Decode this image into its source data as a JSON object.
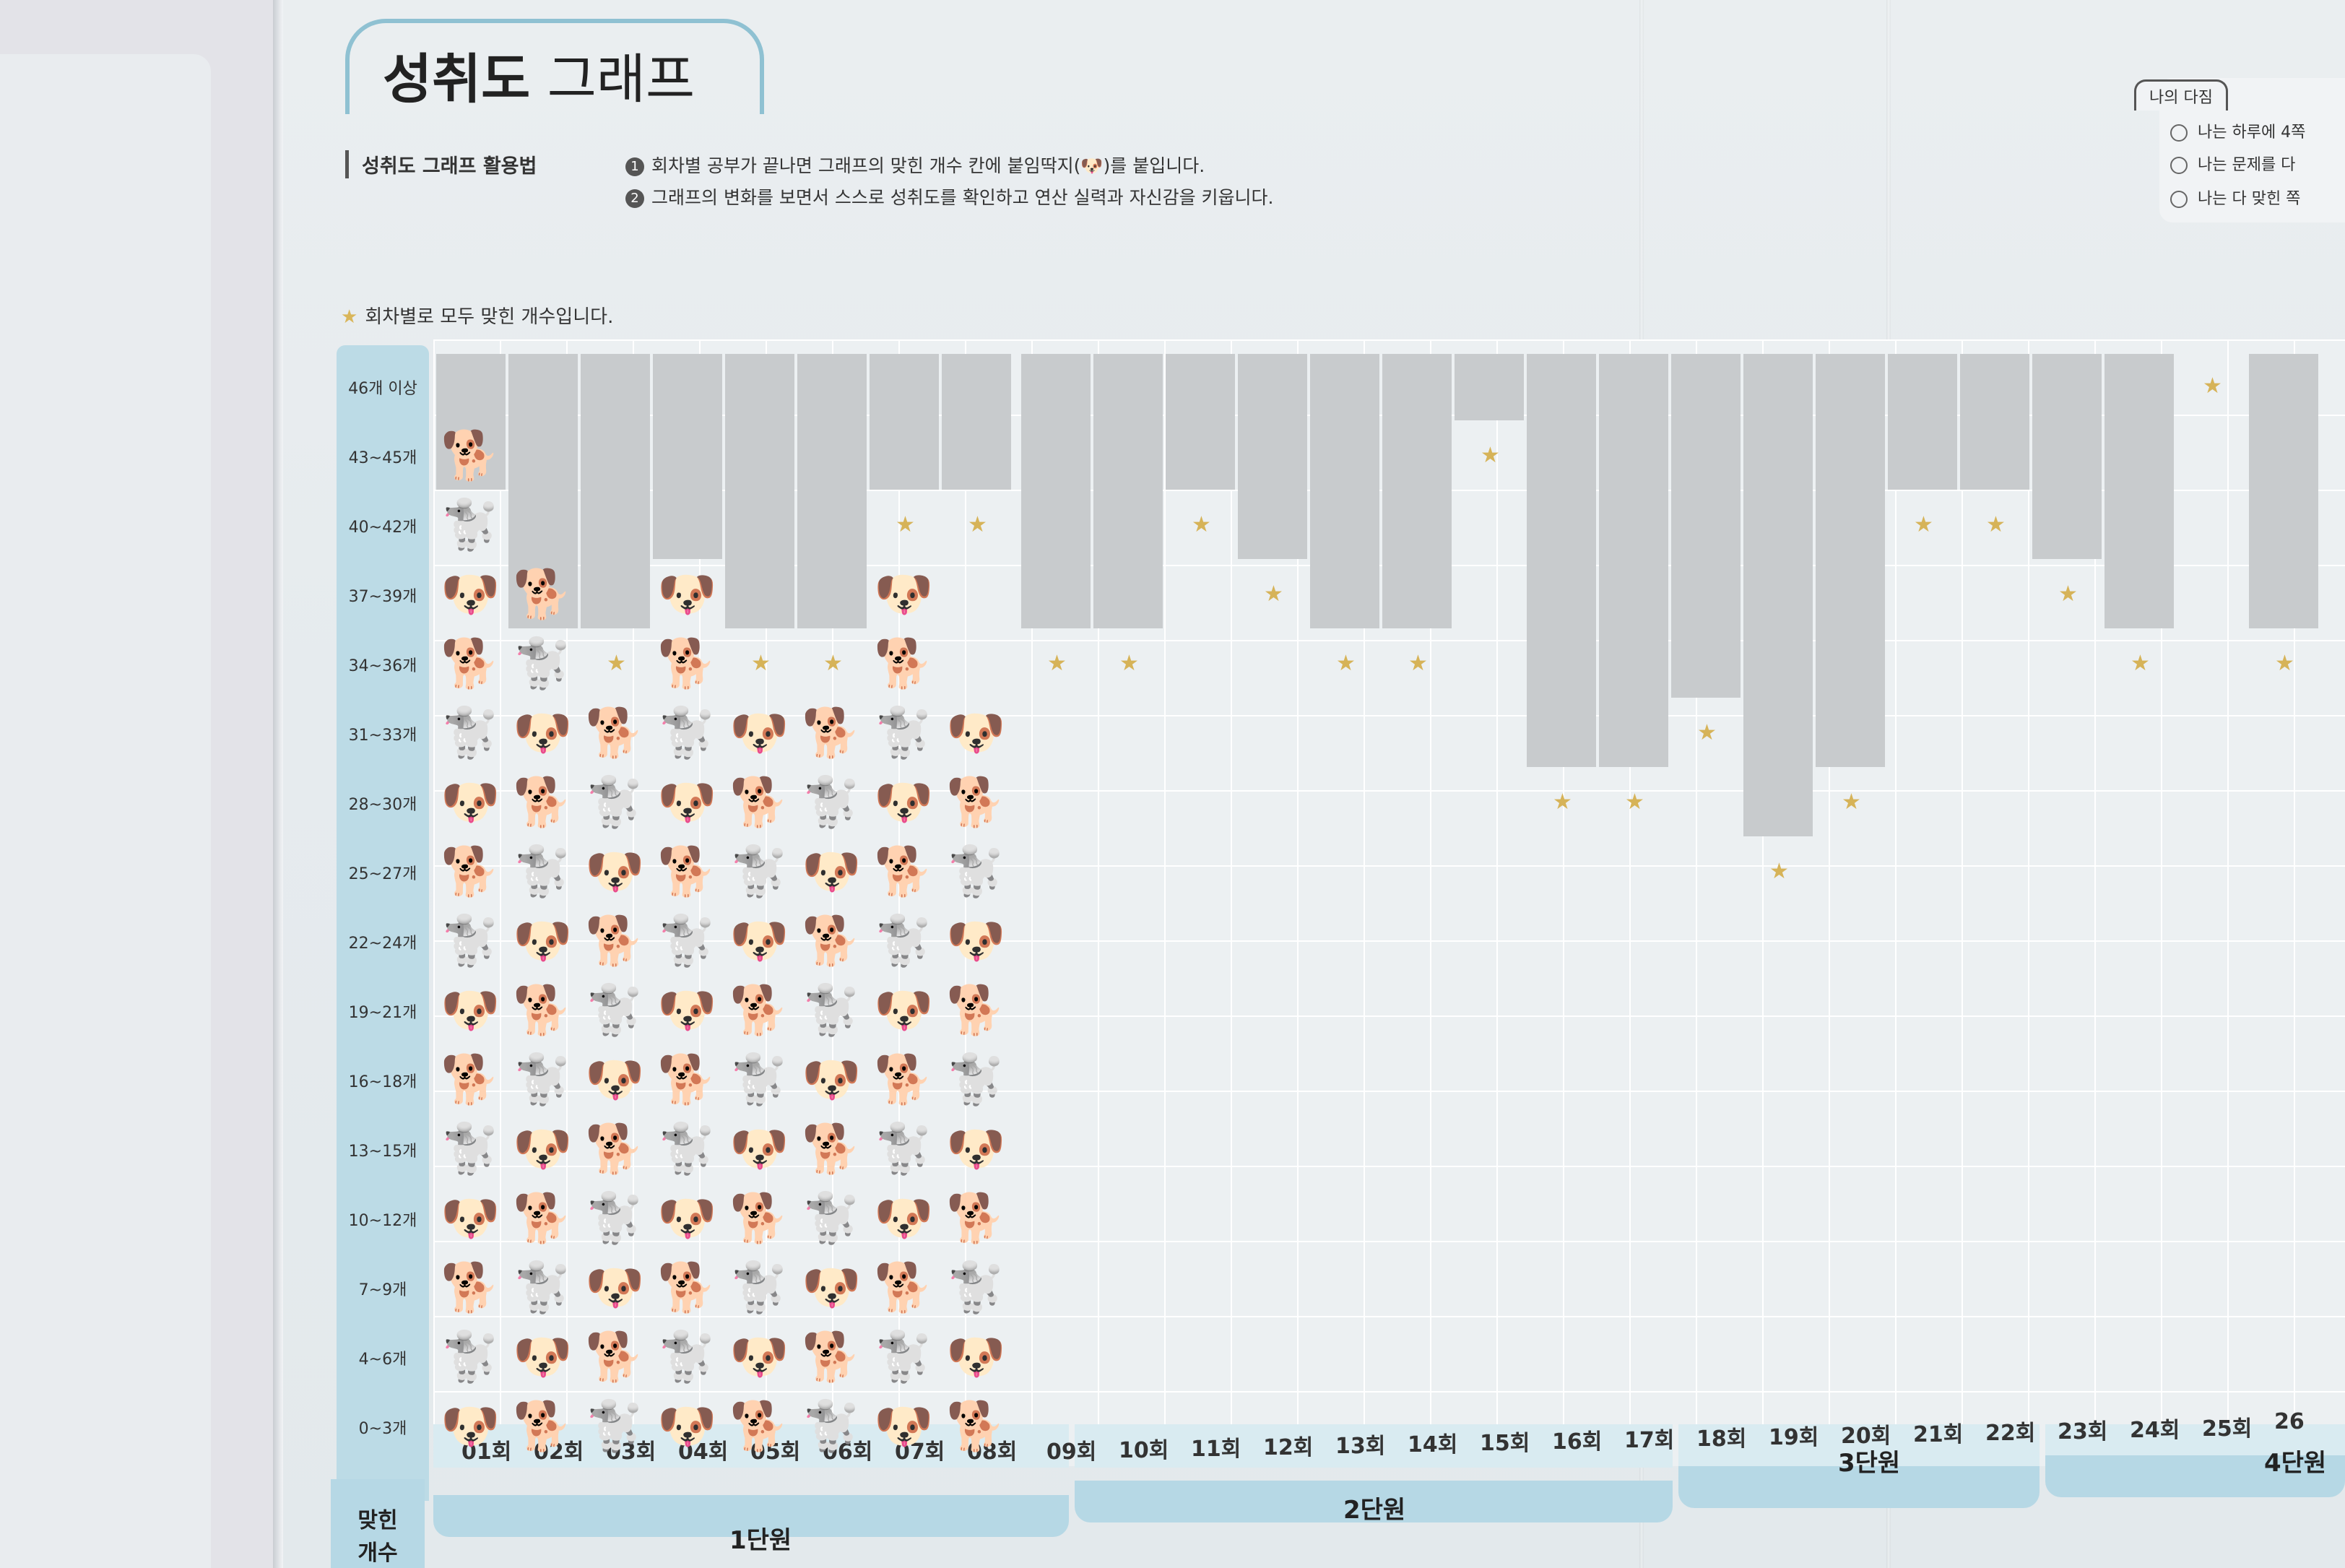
{
  "title": {
    "bold": "성취도",
    "rest": "그래프"
  },
  "howto": {
    "label": "성취도 그래프 활용법",
    "lines": [
      {
        "num": "1",
        "text": "회차별 공부가 끝나면 그래프의 맞힌 개수 칸에 붙임딱지(🐶)를 붙입니다."
      },
      {
        "num": "2",
        "text": "그래프의 변화를 보면서 스스로 성취도를 확인하고 연산 실력과 자신감을 키웁니다."
      }
    ]
  },
  "legend": {
    "icon": "star-icon",
    "text": "회차별로 모두 맞힌 개수입니다."
  },
  "pledge": {
    "tag": "나의 다짐",
    "items": [
      "나는 하루에 4쪽",
      "나는 문제를 다",
      "나는 다 맞힌 쪽"
    ]
  },
  "y_labels": [
    "46개 이상",
    "43~45개",
    "40~42개",
    "37~39개",
    "34~36개",
    "31~33개",
    "28~30개",
    "25~27개",
    "22~24개",
    "19~21개",
    "16~18개",
    "13~15개",
    "10~12개",
    "7~9개",
    "4~6개",
    "0~3개"
  ],
  "x_labels": [
    "01회",
    "02회",
    "03회",
    "04회",
    "05회",
    "06회",
    "07회",
    "08회",
    "09회",
    "10회",
    "11회",
    "12회",
    "13회",
    "14회",
    "15회",
    "16회",
    "17회",
    "18회",
    "19회",
    "20회",
    "21회",
    "22회",
    "23회",
    "24회",
    "25회",
    "26"
  ],
  "units": [
    "1단원",
    "2단원",
    "3단원",
    "4단원"
  ],
  "count_label": [
    "맞힌",
    "개수"
  ],
  "stars_row_index": [
    2,
    4,
    4,
    3,
    4,
    4,
    2,
    2,
    4,
    4,
    2,
    3,
    4,
    4,
    1,
    6,
    6,
    5,
    7,
    6,
    2,
    2,
    3,
    4,
    0,
    4
  ],
  "stickers_top_index": [
    1,
    3,
    5,
    3,
    5,
    5,
    3,
    5
  ],
  "sticker_icons": [
    "dog-gray-face",
    "dog-brown-face",
    "dog-white-face"
  ],
  "colors": {
    "accent": "#8fc1d2",
    "axis_band": "#bcdbe6",
    "star": "#d6b358",
    "gray_cell": "#c8cbcd"
  }
}
